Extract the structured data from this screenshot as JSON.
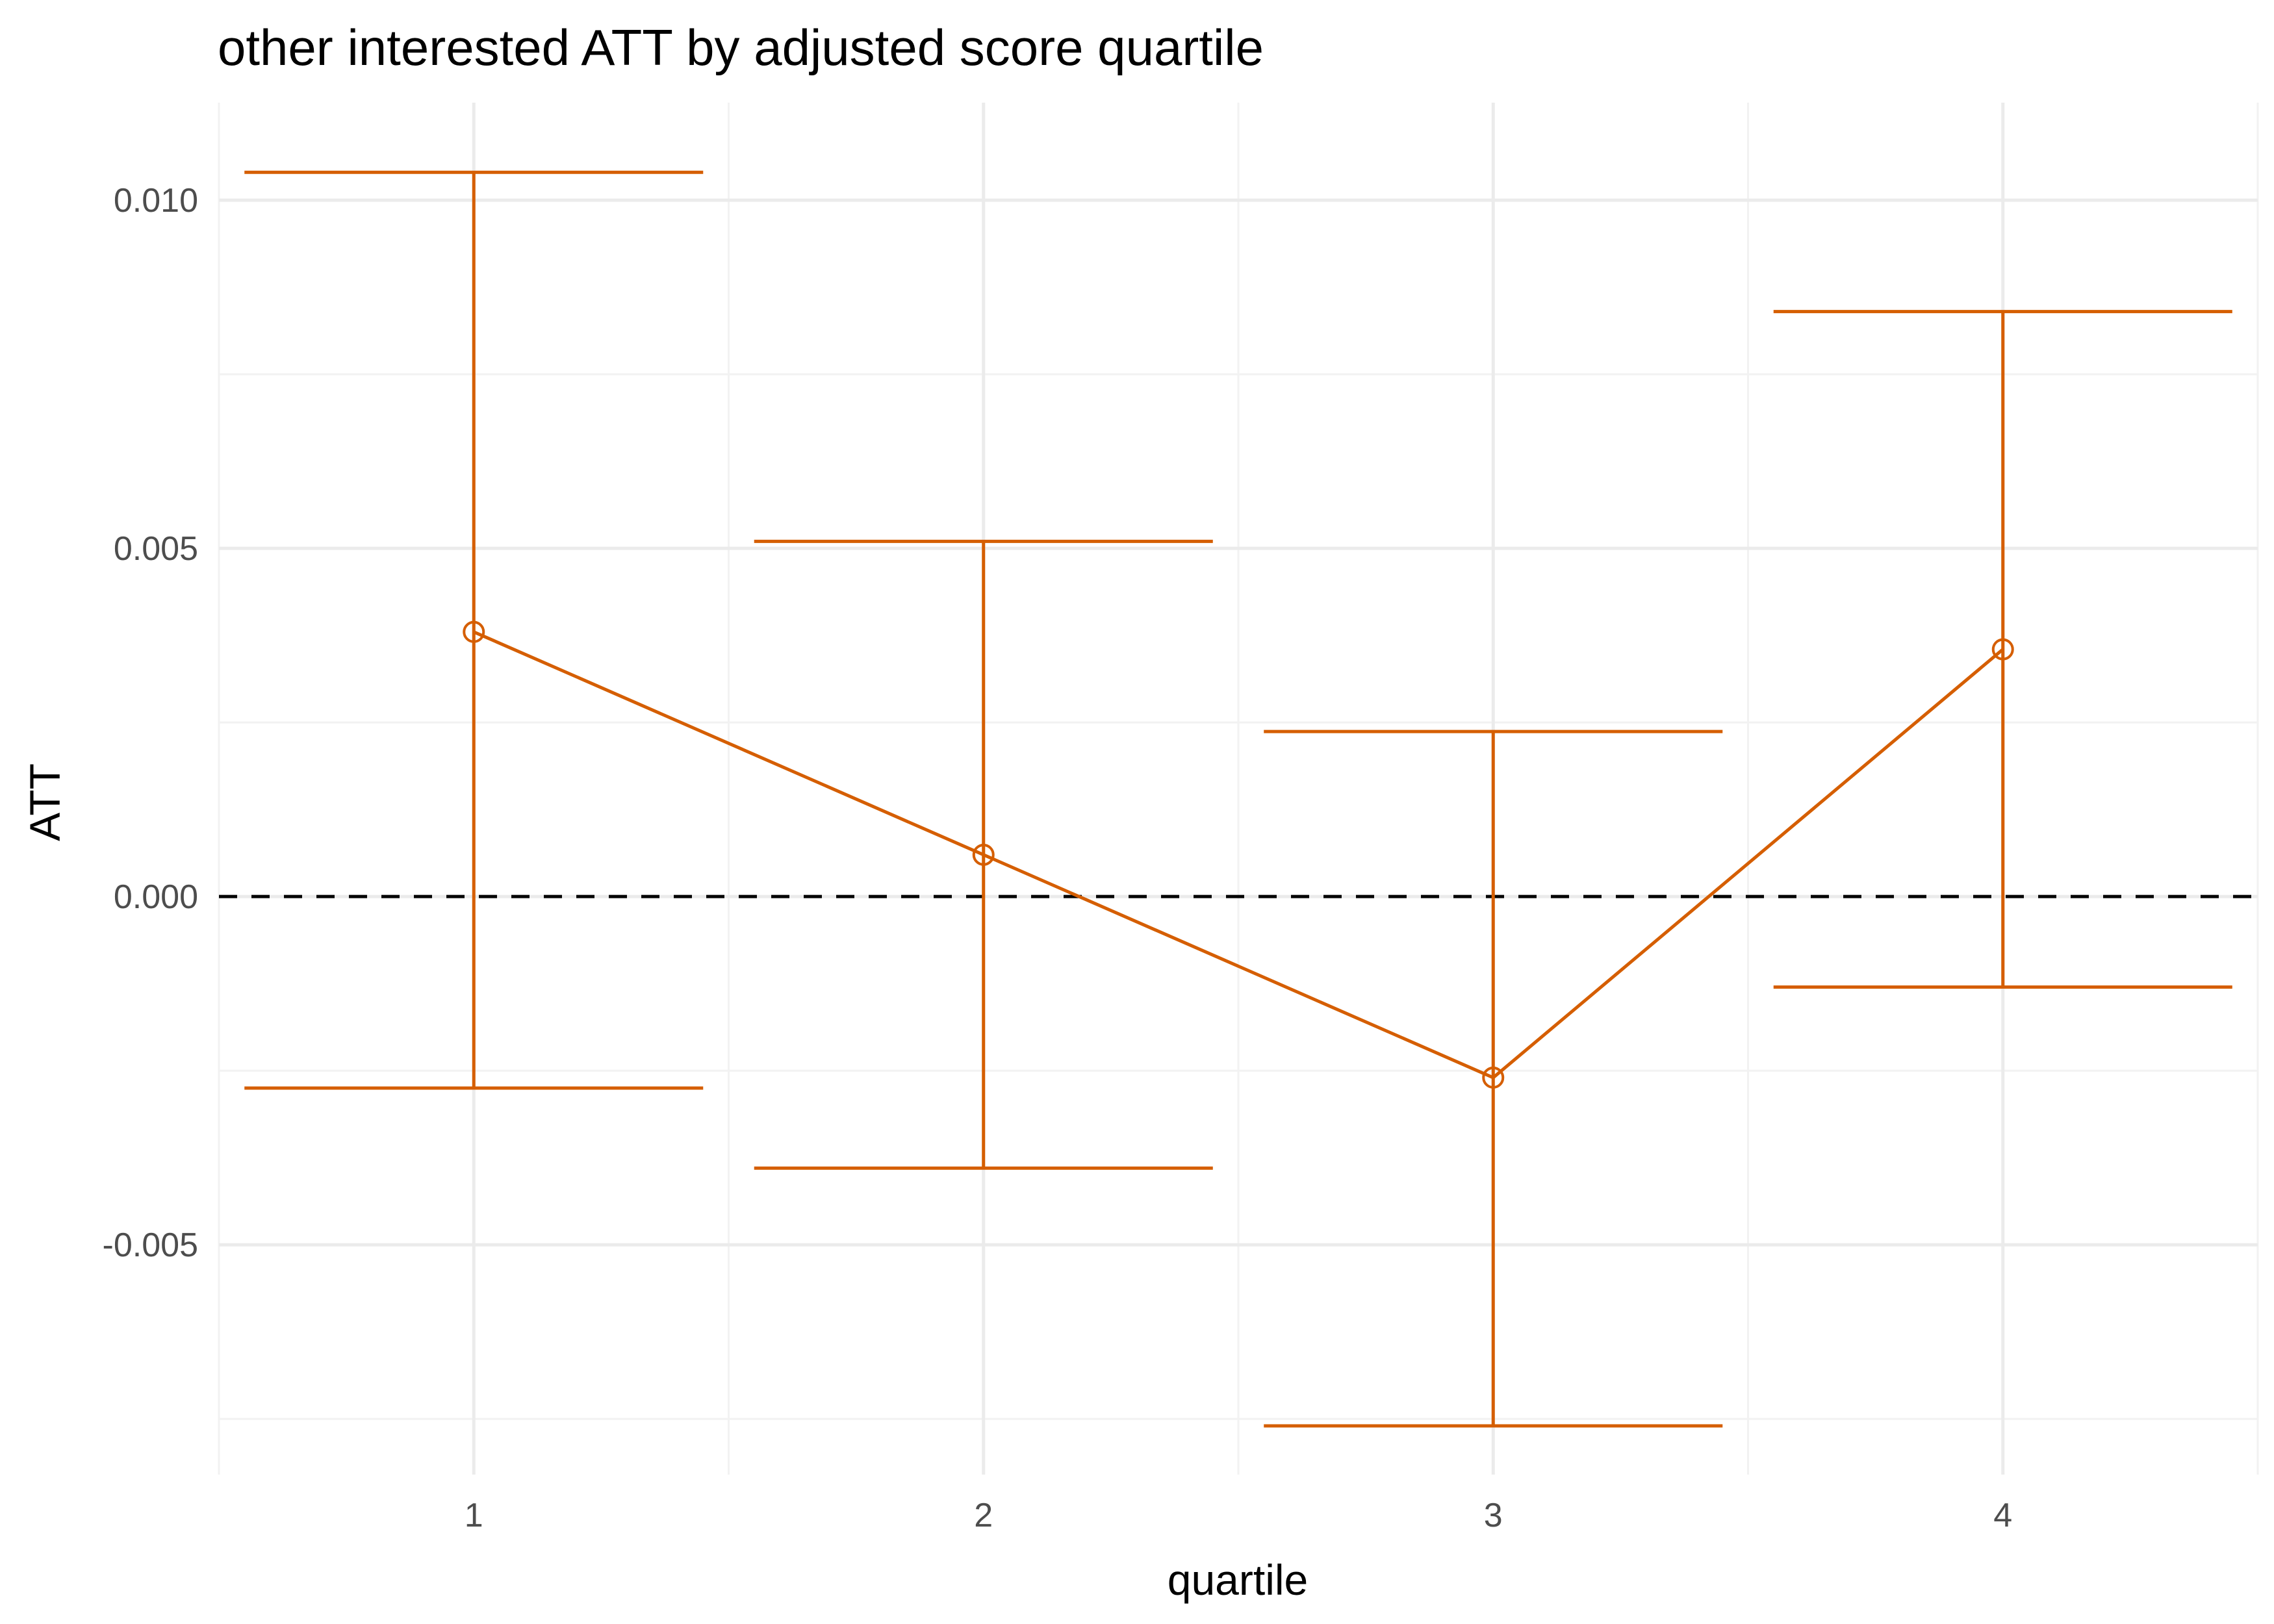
{
  "chart_data": {
    "type": "line",
    "title": "other interested ATT by adjusted score quartile",
    "xlabel": "quartile",
    "ylabel": "ATT",
    "x": [
      1,
      2,
      3,
      4
    ],
    "x_tick_labels": [
      "1",
      "2",
      "3",
      "4"
    ],
    "xlim": [
      0.5,
      4.5
    ],
    "ylim": [
      -0.0083,
      0.0114
    ],
    "y_ticks": [
      -0.005,
      0.0,
      0.005,
      0.01
    ],
    "y_tick_labels": [
      "-0.005",
      "0.000",
      "0.005",
      "0.010"
    ],
    "series": [
      {
        "values": [
          0.0038,
          0.0006,
          -0.0026,
          0.00355
        ],
        "ci_lower": [
          -0.00275,
          -0.0039,
          -0.0076,
          -0.0013
        ],
        "ci_upper": [
          0.0104,
          0.0051,
          0.00237,
          0.0084
        ]
      }
    ],
    "reference_line": {
      "y": 0,
      "style": "dashed",
      "color": "#000000"
    },
    "grid": true,
    "theme": "minimal",
    "colors": {
      "series": "#D55E00"
    }
  }
}
